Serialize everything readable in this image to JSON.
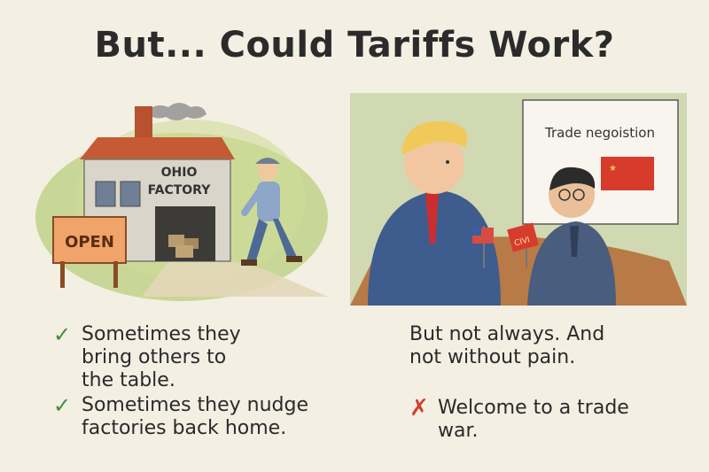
{
  "title": "But... Could Tariffs Work?",
  "left_scene": {
    "factory_sign_line1": "OHIO",
    "factory_sign_line2": "FACTORY",
    "open_sign": "OPEN"
  },
  "right_scene": {
    "board_label": "Trade negoistion",
    "flag_text": "CIVI"
  },
  "left_points": [
    {
      "icon": "check-icon",
      "text_lines": [
        "Sometimes they",
        "bring others to",
        "the table."
      ]
    },
    {
      "icon": "check-icon",
      "text_lines": [
        "Sometimes they nudge",
        "factories back home."
      ]
    }
  ],
  "right_text_lines": [
    "But not always. And",
    "not without pain."
  ],
  "right_point": {
    "icon": "cross-icon",
    "text_lines": [
      "Welcome to a trade",
      "war."
    ]
  },
  "colors": {
    "background": "#f4efe3",
    "check": "#3f8d3a",
    "cross": "#d2402f"
  }
}
